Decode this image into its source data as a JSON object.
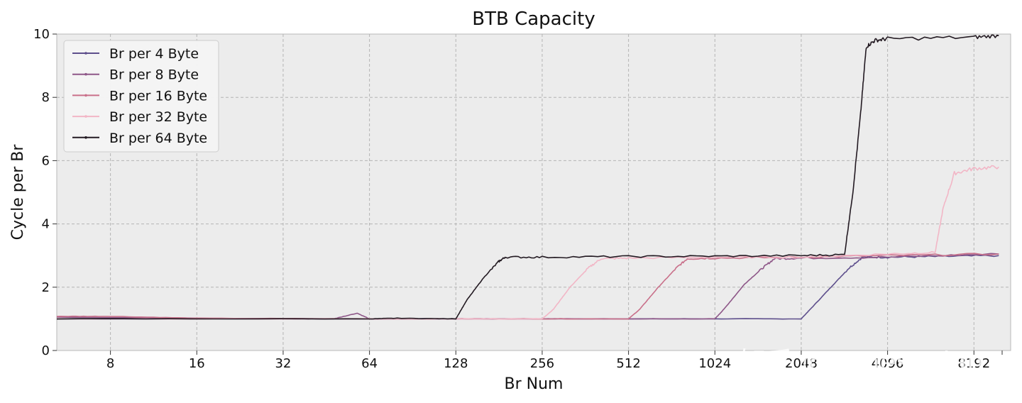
{
  "chart_data": {
    "type": "line",
    "title": "BTB Capacity",
    "xlabel": "Br Num",
    "ylabel": "Cycle per Br",
    "x_scale": "log2",
    "xlim": [
      5.2,
      11000
    ],
    "ylim": [
      0,
      10
    ],
    "x_ticks": [
      8,
      16,
      32,
      64,
      128,
      256,
      512,
      1024,
      2048,
      4096,
      8192
    ],
    "x_tick_labels": [
      "8",
      "16",
      "32",
      "64",
      "128",
      "256",
      "512",
      "1024",
      "2048",
      "4096",
      "8192"
    ],
    "y_ticks": [
      0,
      2,
      4,
      6,
      8,
      10
    ],
    "y_tick_labels": [
      "0",
      "2",
      "4",
      "6",
      "8",
      "10"
    ],
    "grid": true,
    "legend_position": "top-left",
    "series": [
      {
        "name": "Br per 4 Byte",
        "color": "#5e4f8c",
        "points": [
          [
            5.2,
            1.0
          ],
          [
            64,
            1.0
          ],
          [
            128,
            1.0
          ],
          [
            256,
            1.0
          ],
          [
            512,
            1.0
          ],
          [
            1024,
            1.0
          ],
          [
            2048,
            1.0
          ],
          [
            2200,
            1.3
          ],
          [
            2600,
            2.0
          ],
          [
            3000,
            2.6
          ],
          [
            3350,
            2.95
          ],
          [
            4096,
            2.95
          ],
          [
            6000,
            2.97
          ],
          [
            10000,
            3.0
          ]
        ]
      },
      {
        "name": "Br per 8 Byte",
        "color": "#8e5788",
        "points": [
          [
            5.2,
            1.05
          ],
          [
            32,
            1.0
          ],
          [
            48,
            1.0
          ],
          [
            58,
            1.18
          ],
          [
            64,
            1.0
          ],
          [
            128,
            1.0
          ],
          [
            256,
            1.0
          ],
          [
            512,
            1.0
          ],
          [
            1024,
            1.0
          ],
          [
            1100,
            1.3
          ],
          [
            1300,
            2.1
          ],
          [
            1500,
            2.6
          ],
          [
            1650,
            2.9
          ],
          [
            2048,
            2.92
          ],
          [
            4096,
            2.95
          ],
          [
            10000,
            3.05
          ]
        ]
      },
      {
        "name": "Br per 16 Byte",
        "color": "#c9708a",
        "points": [
          [
            5.2,
            1.08
          ],
          [
            8,
            1.08
          ],
          [
            16,
            1.02
          ],
          [
            64,
            1.0
          ],
          [
            128,
            1.0
          ],
          [
            256,
            1.0
          ],
          [
            512,
            1.0
          ],
          [
            560,
            1.3
          ],
          [
            650,
            2.0
          ],
          [
            750,
            2.6
          ],
          [
            820,
            2.9
          ],
          [
            1024,
            2.92
          ],
          [
            2048,
            2.95
          ],
          [
            4096,
            3.0
          ],
          [
            10000,
            3.05
          ]
        ]
      },
      {
        "name": "Br per 32 Byte",
        "color": "#f2b6c6",
        "points": [
          [
            5.2,
            1.0
          ],
          [
            128,
            1.0
          ],
          [
            256,
            1.0
          ],
          [
            280,
            1.3
          ],
          [
            320,
            2.0
          ],
          [
            370,
            2.6
          ],
          [
            410,
            2.9
          ],
          [
            512,
            2.92
          ],
          [
            1024,
            2.95
          ],
          [
            2048,
            2.95
          ],
          [
            4096,
            3.05
          ],
          [
            6000,
            3.1
          ],
          [
            6400,
            4.5
          ],
          [
            7000,
            5.6
          ],
          [
            8192,
            5.75
          ],
          [
            10000,
            5.8
          ]
        ]
      },
      {
        "name": "Br per 64 Byte",
        "color": "#231a22",
        "points": [
          [
            5.2,
            1.0
          ],
          [
            64,
            1.0
          ],
          [
            80,
            1.02
          ],
          [
            128,
            1.0
          ],
          [
            140,
            1.6
          ],
          [
            160,
            2.3
          ],
          [
            180,
            2.8
          ],
          [
            190,
            2.95
          ],
          [
            256,
            2.95
          ],
          [
            512,
            2.97
          ],
          [
            1024,
            2.98
          ],
          [
            2048,
            3.0
          ],
          [
            2900,
            3.03
          ],
          [
            3100,
            5.0
          ],
          [
            3300,
            7.5
          ],
          [
            3450,
            9.6
          ],
          [
            3700,
            9.8
          ],
          [
            4096,
            9.85
          ],
          [
            8192,
            9.9
          ],
          [
            10000,
            9.95
          ]
        ]
      }
    ]
  },
  "watermark": "知乎 @JamesAslan"
}
